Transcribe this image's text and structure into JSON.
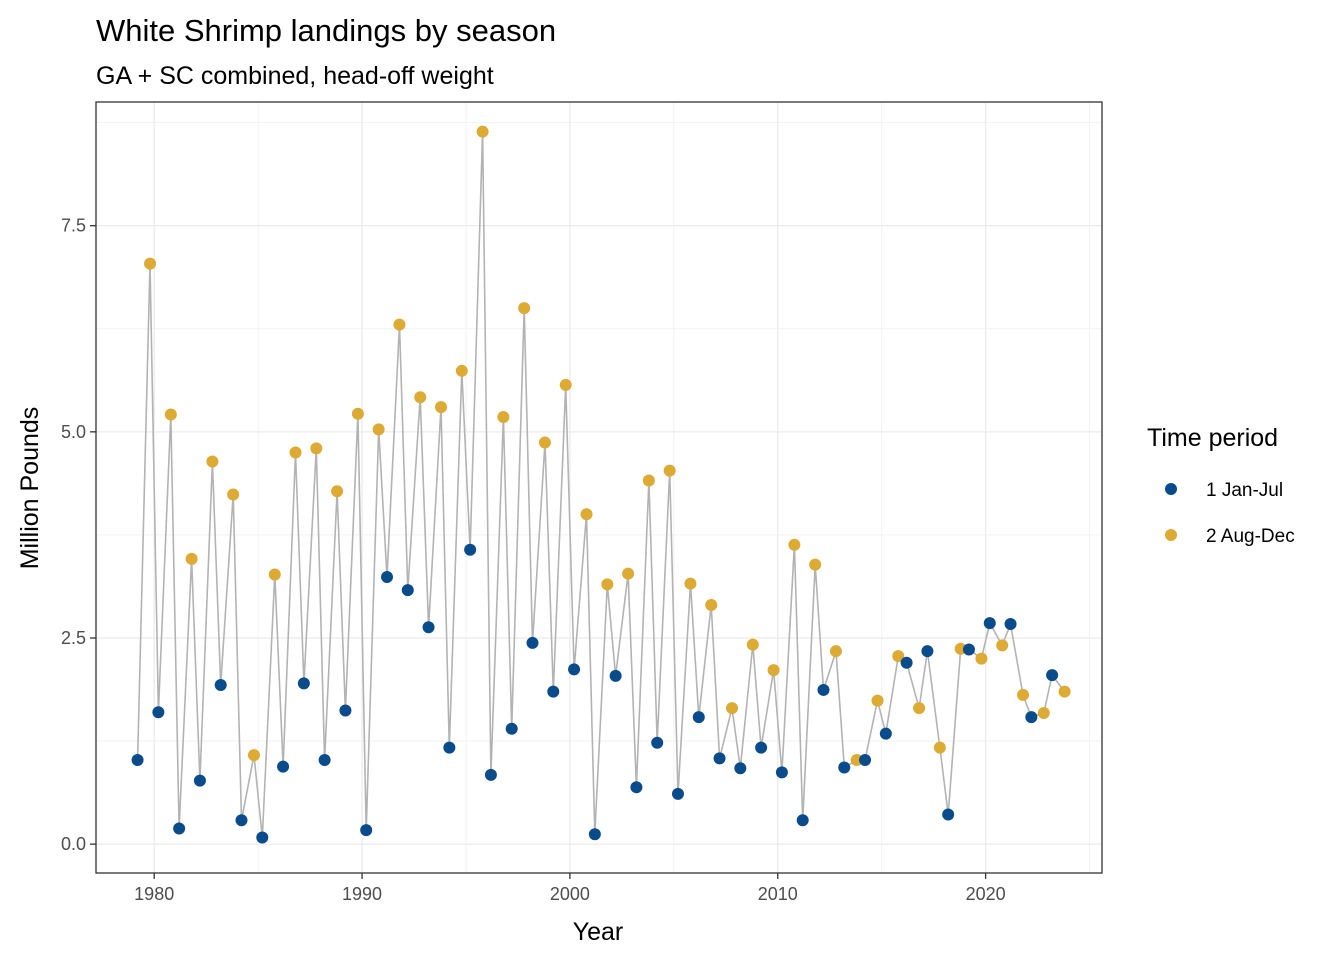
{
  "chart_data": {
    "type": "line",
    "title": "White Shrimp landings by season",
    "subtitle": "GA + SC combined, head-off weight",
    "xlabel": "Year",
    "ylabel": "Million Pounds",
    "xlim": [
      1977.2,
      2025.6
    ],
    "ylim": [
      -0.35,
      9.0
    ],
    "x_ticks": [
      1980,
      1990,
      2000,
      2010,
      2020
    ],
    "x_tick_labels": [
      "1980",
      "1990",
      "2000",
      "2010",
      "2020"
    ],
    "y_ticks": [
      0.0,
      2.5,
      5.0,
      7.5
    ],
    "y_tick_labels": [
      "0.0",
      "2.5",
      "5.0",
      "7.5"
    ],
    "grid": true,
    "legend": {
      "title": "Time period",
      "position": "right",
      "entries": [
        {
          "label": "1 Jan-Jul",
          "color": "#0A4C8B"
        },
        {
          "label": "2 Aug-Dec",
          "color": "#DDAA33"
        }
      ]
    },
    "connector_color": "#B3B3B3",
    "series": [
      {
        "name": "1 Jan-Jul",
        "color": "#0A4C8B",
        "x": [
          1979.2,
          1980.2,
          1981.2,
          1982.2,
          1983.2,
          1984.2,
          1985.2,
          1986.2,
          1987.2,
          1988.2,
          1989.2,
          1990.2,
          1991.2,
          1992.2,
          1993.2,
          1994.2,
          1995.2,
          1996.2,
          1997.2,
          1998.2,
          1999.2,
          2000.2,
          2001.2,
          2002.2,
          2003.2,
          2004.2,
          2005.2,
          2006.2,
          2007.2,
          2008.2,
          2009.2,
          2010.2,
          2011.2,
          2012.2,
          2013.2,
          2014.2,
          2015.2,
          2016.2,
          2017.2,
          2018.2,
          2019.2,
          2020.2,
          2021.2,
          2022.2,
          2023.2
        ],
        "y": [
          1.02,
          1.6,
          0.19,
          0.77,
          1.93,
          0.29,
          0.08,
          0.94,
          1.95,
          1.02,
          1.62,
          0.17,
          3.24,
          3.08,
          2.63,
          1.17,
          3.57,
          0.84,
          1.4,
          2.44,
          1.85,
          2.12,
          0.12,
          2.04,
          0.69,
          1.23,
          0.61,
          1.54,
          1.04,
          0.92,
          1.17,
          0.87,
          0.29,
          1.87,
          0.93,
          1.02,
          1.34,
          2.2,
          2.34,
          0.36,
          2.36,
          2.68,
          2.67,
          1.54,
          2.05
        ]
      },
      {
        "name": "2 Aug-Dec",
        "color": "#DDAA33",
        "x": [
          1979.8,
          1980.8,
          1981.8,
          1982.8,
          1983.8,
          1984.8,
          1985.8,
          1986.8,
          1987.8,
          1988.8,
          1989.8,
          1990.8,
          1991.8,
          1992.8,
          1993.8,
          1994.8,
          1995.8,
          1996.8,
          1997.8,
          1998.8,
          1999.8,
          2000.8,
          2001.8,
          2002.8,
          2003.8,
          2004.8,
          2005.8,
          2006.8,
          2007.8,
          2008.8,
          2009.8,
          2010.8,
          2011.8,
          2012.8,
          2013.8,
          2014.8,
          2015.8,
          2016.8,
          2017.8,
          2018.8,
          2019.8,
          2020.8,
          2021.8,
          2022.8,
          2023.8
        ],
        "y": [
          7.04,
          5.21,
          3.46,
          4.64,
          4.24,
          1.08,
          3.27,
          4.75,
          4.8,
          4.28,
          5.22,
          5.03,
          6.3,
          5.42,
          5.3,
          5.74,
          8.64,
          5.18,
          6.5,
          4.87,
          5.57,
          4.0,
          3.15,
          3.28,
          4.41,
          4.53,
          3.16,
          2.9,
          1.65,
          2.42,
          2.11,
          3.63,
          3.39,
          2.34,
          1.02,
          1.74,
          2.28,
          1.65,
          1.17,
          2.37,
          2.25,
          2.41,
          1.81,
          1.59,
          1.85
        ]
      }
    ]
  }
}
